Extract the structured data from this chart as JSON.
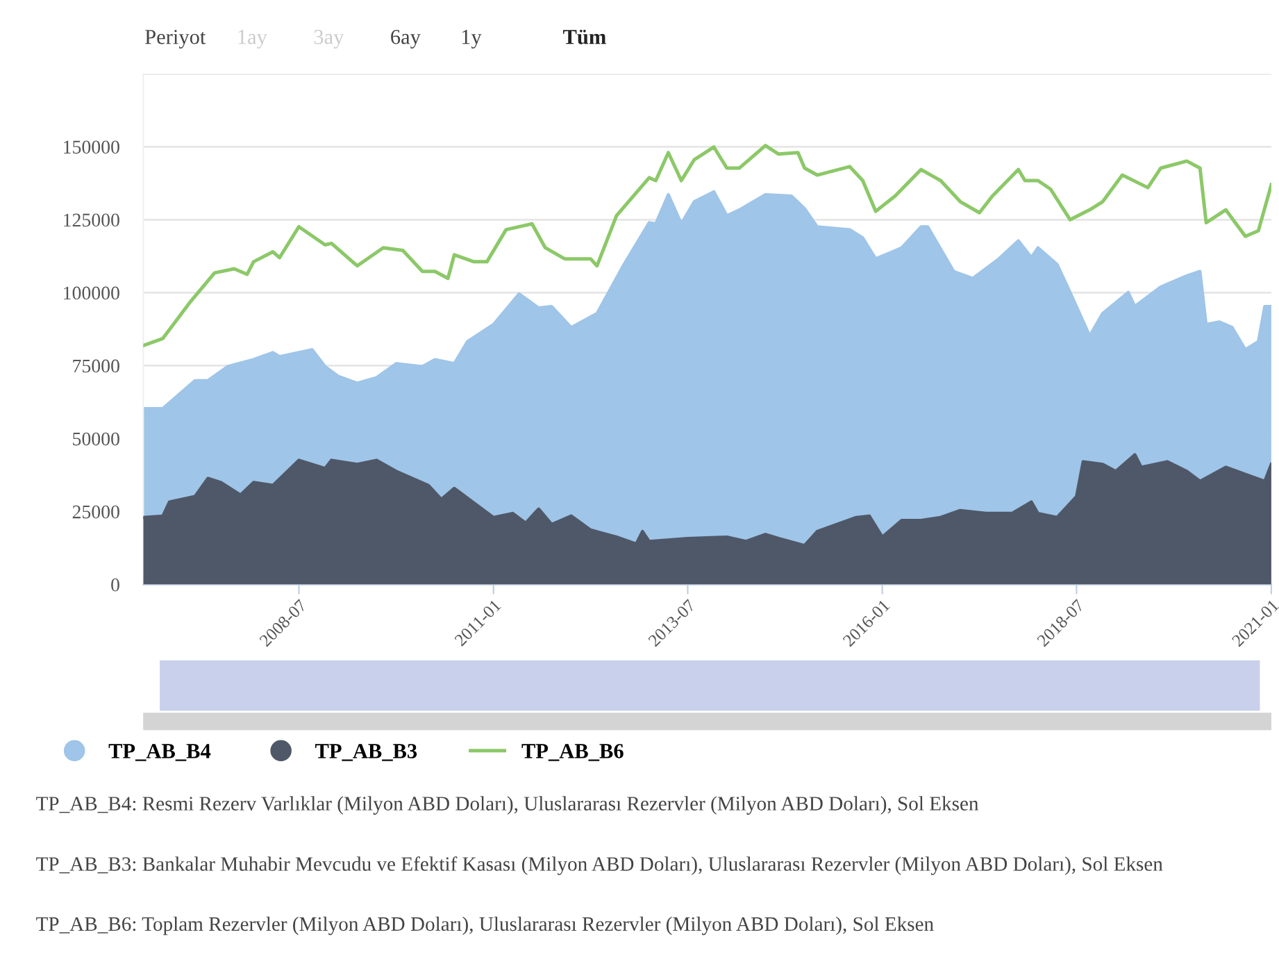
{
  "chart_data": {
    "type": "area",
    "series": [
      {
        "name": "TP_AB_B4",
        "color": "#9fc5e8",
        "x": [
          "2006-07",
          "2006-10",
          "2007-03",
          "2007-05",
          "2007-08",
          "2007-12",
          "2008-03",
          "2008-04",
          "2008-09",
          "2008-11",
          "2009-01",
          "2009-04",
          "2009-07",
          "2009-10",
          "2010-02",
          "2010-04",
          "2010-07",
          "2010-09",
          "2011-01",
          "2011-05",
          "2011-08",
          "2011-10",
          "2012-01",
          "2012-05",
          "2012-09",
          "2013-01",
          "2013-02",
          "2013-04",
          "2013-06",
          "2013-08",
          "2013-11",
          "2014-01",
          "2014-03",
          "2014-07",
          "2014-11",
          "2015-01",
          "2015-03",
          "2015-08",
          "2015-10",
          "2015-12",
          "2016-04",
          "2016-07",
          "2016-08",
          "2016-12",
          "2017-03",
          "2017-07",
          "2017-10",
          "2017-12",
          "2018-01",
          "2018-04",
          "2018-06",
          "2018-09",
          "2018-11",
          "2019-03",
          "2019-04",
          "2019-08",
          "2019-12",
          "2020-02",
          "2020-03",
          "2020-05",
          "2020-07",
          "2020-09",
          "2020-11",
          "2020-12",
          "2021-01"
        ],
        "values": [
          60300,
          60300,
          69900,
          69900,
          74700,
          77100,
          79500,
          78100,
          80500,
          74700,
          71400,
          69000,
          70900,
          75700,
          74700,
          77100,
          75700,
          83300,
          89100,
          99600,
          94800,
          95300,
          88100,
          92900,
          109200,
          124000,
          123600,
          133600,
          123600,
          131200,
          134600,
          126400,
          128400,
          133600,
          133100,
          128800,
          122600,
          121600,
          118800,
          111600,
          115400,
          122600,
          122600,
          107300,
          104900,
          111600,
          117800,
          112100,
          115400,
          109700,
          100100,
          85200,
          92900,
          100100,
          95300,
          102000,
          105800,
          107300,
          89100,
          90000,
          88100,
          80500,
          83300,
          95300,
          95300
        ]
      },
      {
        "name": "TP_AB_B3",
        "color": "#4f5868",
        "x": [
          "2006-07",
          "2006-10",
          "2006-11",
          "2007-03",
          "2007-05",
          "2007-07",
          "2007-10",
          "2007-12",
          "2008-03",
          "2008-07",
          "2008-11",
          "2008-12",
          "2009-04",
          "2009-07",
          "2009-10",
          "2010-03",
          "2010-05",
          "2010-07",
          "2011-01",
          "2011-04",
          "2011-06",
          "2011-08",
          "2011-10",
          "2012-01",
          "2012-04",
          "2012-08",
          "2012-11",
          "2012-12",
          "2013-01",
          "2013-07",
          "2014-01",
          "2014-04",
          "2014-07",
          "2014-09",
          "2015-01",
          "2015-03",
          "2015-09",
          "2015-11",
          "2016-01",
          "2016-04",
          "2016-07",
          "2016-10",
          "2017-01",
          "2017-05",
          "2017-09",
          "2017-12",
          "2018-01",
          "2018-04",
          "2018-07",
          "2018-08",
          "2018-11",
          "2019-01",
          "2019-04",
          "2019-05",
          "2019-09",
          "2019-12",
          "2020-02",
          "2020-06",
          "2020-09",
          "2020-12",
          "2021-01"
        ],
        "values": [
          23000,
          23500,
          28300,
          30200,
          36400,
          35000,
          30700,
          35000,
          34000,
          42600,
          39800,
          42600,
          41200,
          42600,
          38800,
          34000,
          29200,
          33000,
          23000,
          24400,
          21100,
          25900,
          20600,
          23500,
          18700,
          16300,
          13900,
          18200,
          14800,
          15800,
          16300,
          14800,
          17200,
          15800,
          13400,
          18200,
          23000,
          23500,
          16300,
          22000,
          22000,
          23000,
          25400,
          24400,
          24400,
          28300,
          24400,
          23000,
          30200,
          42100,
          41200,
          38800,
          44500,
          40200,
          42100,
          38800,
          35400,
          40200,
          37800,
          35400,
          41200
        ]
      },
      {
        "name": "TP_AB_B6",
        "type": "line",
        "color": "#8cc868",
        "x": [
          "2006-07",
          "2006-10",
          "2007-02",
          "2007-06",
          "2007-09",
          "2007-11",
          "2007-12",
          "2008-03",
          "2008-04",
          "2008-07",
          "2008-11",
          "2008-12",
          "2009-04",
          "2009-08",
          "2009-11",
          "2010-02",
          "2010-04",
          "2010-06",
          "2010-07",
          "2010-10",
          "2010-12",
          "2011-03",
          "2011-07",
          "2011-09",
          "2011-12",
          "2012-04",
          "2012-05",
          "2012-08",
          "2013-01",
          "2013-02",
          "2013-04",
          "2013-06",
          "2013-08",
          "2013-11",
          "2014-01",
          "2014-03",
          "2014-07",
          "2014-09",
          "2014-12",
          "2015-01",
          "2015-03",
          "2015-08",
          "2015-10",
          "2015-12",
          "2016-03",
          "2016-07",
          "2016-10",
          "2017-01",
          "2017-04",
          "2017-06",
          "2017-10",
          "2017-11",
          "2018-01",
          "2018-03",
          "2018-06",
          "2018-09",
          "2018-11",
          "2019-02",
          "2019-06",
          "2019-08",
          "2019-12",
          "2020-02",
          "2020-03",
          "2020-06",
          "2020-09",
          "2020-11",
          "2021-01"
        ],
        "values": [
          81900,
          84300,
          96300,
          106800,
          108200,
          106300,
          110600,
          114000,
          112000,
          122600,
          116400,
          116900,
          109200,
          115400,
          114500,
          107300,
          107300,
          104900,
          113000,
          110600,
          110600,
          121600,
          123600,
          115400,
          111600,
          111600,
          109200,
          126400,
          139400,
          138400,
          148000,
          138400,
          145600,
          149900,
          142700,
          142700,
          150400,
          147500,
          148000,
          142700,
          140300,
          143200,
          138400,
          127900,
          133100,
          142200,
          138400,
          131200,
          127400,
          133100,
          142200,
          138400,
          138400,
          135500,
          125000,
          128400,
          131200,
          140300,
          136000,
          142700,
          145100,
          142700,
          124000,
          128400,
          119300,
          121200,
          137000
        ]
      }
    ],
    "xlim": [
      "2006-07",
      "2021-01"
    ],
    "xticks": [
      "2008-07",
      "2011-01",
      "2013-07",
      "2016-01",
      "2018-07",
      "2021-01"
    ],
    "ylim": [
      0,
      175000
    ],
    "yticks": [
      0,
      25000,
      50000,
      75000,
      100000,
      125000,
      150000,
      {
        "value": 175000,
        "label": null
      }
    ],
    "grid": "y",
    "legend": "bottom",
    "annotations": [
      "Periyot",
      "1ay",
      "3ay",
      "6ay",
      "1y",
      "Tüm",
      "TP_AB_B4: Resmi Rezerv Varlıklar (Milyon ABD Doları), Uluslararası Rezervler (Milyon ABD Doları), Sol Eksen",
      "TP_AB_B3: Bankalar Muhabir Mevcudu ve Efektif Kasası (Milyon ABD Doları), Uluslararası Rezervler (Milyon ABD Doları), Sol Eksen",
      "TP_AB_B6: Toplam Rezervler (Milyon ABD Doları), Uluslararası Rezervler (Milyon ABD Doları), Sol Eksen"
    ]
  }
}
